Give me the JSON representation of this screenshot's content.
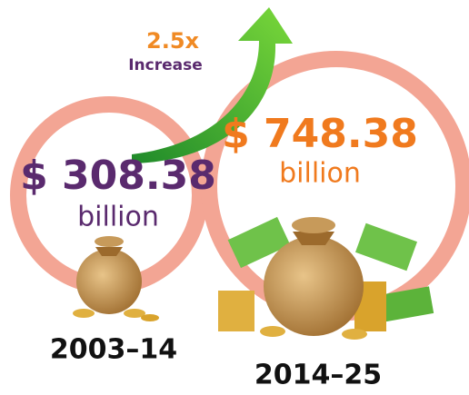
{
  "increase": {
    "factor": "2.5x",
    "label": "Increase"
  },
  "periods": [
    {
      "amount": "$ 308.38",
      "unit": "billion",
      "years": "2003–14"
    },
    {
      "amount": "$ 748.38",
      "unit": "billion",
      "years": "2014–25"
    }
  ]
}
